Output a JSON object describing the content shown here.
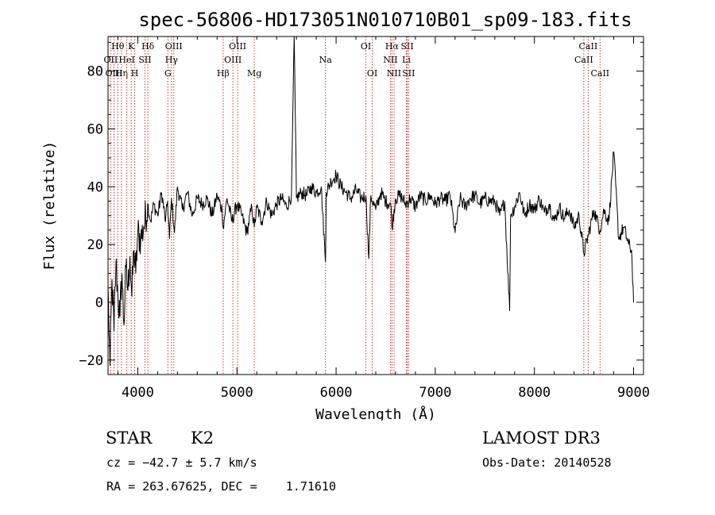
{
  "chart_data": {
    "type": "line",
    "title": "spec-56806-HD173051N010710B01_sp09-183.fits",
    "xlabel": "Wavelength (Å)",
    "ylabel": "Flux (relative)",
    "xlim": [
      3700,
      9100
    ],
    "ylim": [
      -25,
      92
    ],
    "xticks": [
      4000,
      5000,
      6000,
      7000,
      8000,
      9000
    ],
    "yticks": [
      -20,
      0,
      20,
      40,
      60,
      80
    ],
    "grid": false,
    "series": [
      {
        "name": "flux",
        "x": [
          3700,
          3720,
          3740,
          3760,
          3780,
          3800,
          3820,
          3840,
          3860,
          3880,
          3900,
          3920,
          3940,
          3960,
          3980,
          4000,
          4030,
          4060,
          4100,
          4130,
          4160,
          4200,
          4240,
          4280,
          4300,
          4320,
          4340,
          4370,
          4400,
          4450,
          4500,
          4550,
          4600,
          4650,
          4700,
          4750,
          4800,
          4850,
          4861,
          4900,
          4950,
          5000,
          5050,
          5100,
          5150,
          5175,
          5200,
          5250,
          5300,
          5350,
          5400,
          5450,
          5500,
          5550,
          5577,
          5600,
          5650,
          5700,
          5750,
          5800,
          5850,
          5893,
          5900,
          5950,
          6000,
          6050,
          6100,
          6150,
          6200,
          6250,
          6300,
          6330,
          6350,
          6400,
          6450,
          6500,
          6550,
          6563,
          6600,
          6650,
          6700,
          6750,
          6800,
          6850,
          6900,
          6950,
          7000,
          7050,
          7100,
          7150,
          7200,
          7250,
          7300,
          7350,
          7400,
          7450,
          7500,
          7550,
          7600,
          7650,
          7700,
          7750,
          7760,
          7800,
          7850,
          7900,
          7950,
          8000,
          8050,
          8100,
          8150,
          8200,
          8250,
          8300,
          8350,
          8400,
          8450,
          8498,
          8542,
          8600,
          8662,
          8700,
          8750,
          8800,
          8850,
          8900,
          8950,
          8980,
          9000
        ],
        "values": [
          5,
          -22,
          8,
          -10,
          14,
          2,
          -5,
          10,
          -8,
          12,
          4,
          16,
          2,
          18,
          10,
          24,
          22,
          26,
          34,
          28,
          34,
          30,
          38,
          28,
          35,
          22,
          36,
          24,
          40,
          32,
          38,
          30,
          36,
          34,
          36,
          30,
          37,
          32,
          26,
          36,
          28,
          34,
          30,
          24,
          33,
          26,
          33,
          28,
          35,
          30,
          34,
          36,
          33,
          37,
          92,
          36,
          38,
          37,
          40,
          38,
          40,
          14,
          38,
          42,
          44,
          40,
          38,
          36,
          39,
          36,
          37,
          15,
          37,
          32,
          38,
          35,
          34,
          26,
          36,
          37,
          34,
          36,
          33,
          37,
          35,
          37,
          34,
          36,
          35,
          37,
          24,
          36,
          33,
          36,
          37,
          34,
          36,
          35,
          35,
          30,
          35,
          -3,
          30,
          33,
          38,
          30,
          34,
          32,
          36,
          31,
          34,
          28,
          33,
          29,
          32,
          26,
          30,
          17,
          23,
          32,
          25,
          32,
          28,
          52,
          22,
          26,
          20,
          18,
          0
        ]
      }
    ],
    "line_markers": [
      {
        "label": "Hθ",
        "wavelength": 3798,
        "row": 1
      },
      {
        "label": "OII",
        "wavelength": 3727,
        "row": 2
      },
      {
        "label": "OIII",
        "wavelength": 3760,
        "row": 3
      },
      {
        "label": "Hη",
        "wavelength": 3835,
        "row": 3
      },
      {
        "label": "K",
        "wavelength": 3934,
        "row": 1
      },
      {
        "label": "HeI",
        "wavelength": 3889,
        "row": 2
      },
      {
        "label": "H",
        "wavelength": 3969,
        "row": 3
      },
      {
        "label": "Hδ",
        "wavelength": 4102,
        "row": 1
      },
      {
        "label": "SII",
        "wavelength": 4072,
        "row": 2
      },
      {
        "label": "OIII",
        "wavelength": 4363,
        "row": 1
      },
      {
        "label": "Hγ",
        "wavelength": 4340,
        "row": 2
      },
      {
        "label": "G",
        "wavelength": 4304,
        "row": 3
      },
      {
        "label": "Hβ",
        "wavelength": 4861,
        "row": 3
      },
      {
        "label": "OIII",
        "wavelength": 5007,
        "row": 1
      },
      {
        "label": "OIII",
        "wavelength": 4959,
        "row": 2
      },
      {
        "label": "Mg",
        "wavelength": 5175,
        "row": 3
      },
      {
        "label": "Na",
        "wavelength": 5893,
        "row": 2
      },
      {
        "label": "OI",
        "wavelength": 6300,
        "row": 1
      },
      {
        "label": "OI",
        "wavelength": 6364,
        "row": 3
      },
      {
        "label": "Hα",
        "wavelength": 6563,
        "row": 1
      },
      {
        "label": "NII",
        "wavelength": 6548,
        "row": 2
      },
      {
        "label": "NII",
        "wavelength": 6584,
        "row": 3
      },
      {
        "label": "SII",
        "wavelength": 6717,
        "row": 1
      },
      {
        "label": "Li",
        "wavelength": 6708,
        "row": 2
      },
      {
        "label": "SII",
        "wavelength": 6731,
        "row": 3
      },
      {
        "label": "CaII",
        "wavelength": 8542,
        "row": 1
      },
      {
        "label": "CaII",
        "wavelength": 8498,
        "row": 2
      },
      {
        "label": "CaII",
        "wavelength": 8662,
        "row": 3
      }
    ]
  },
  "info": {
    "object_class": "STAR",
    "subclass": "K2",
    "redshift": "cz = −42.7 ± 5.7 km/s",
    "coords": "RA = 263.67625, DEC =    1.71610",
    "survey": "LAMOST DR3",
    "obs_date": "Obs-Date: 20140528"
  },
  "colors": {
    "spectrum": "#000000",
    "marker_line": "#cc3333",
    "axis": "#000000",
    "background": "#ffffff"
  }
}
